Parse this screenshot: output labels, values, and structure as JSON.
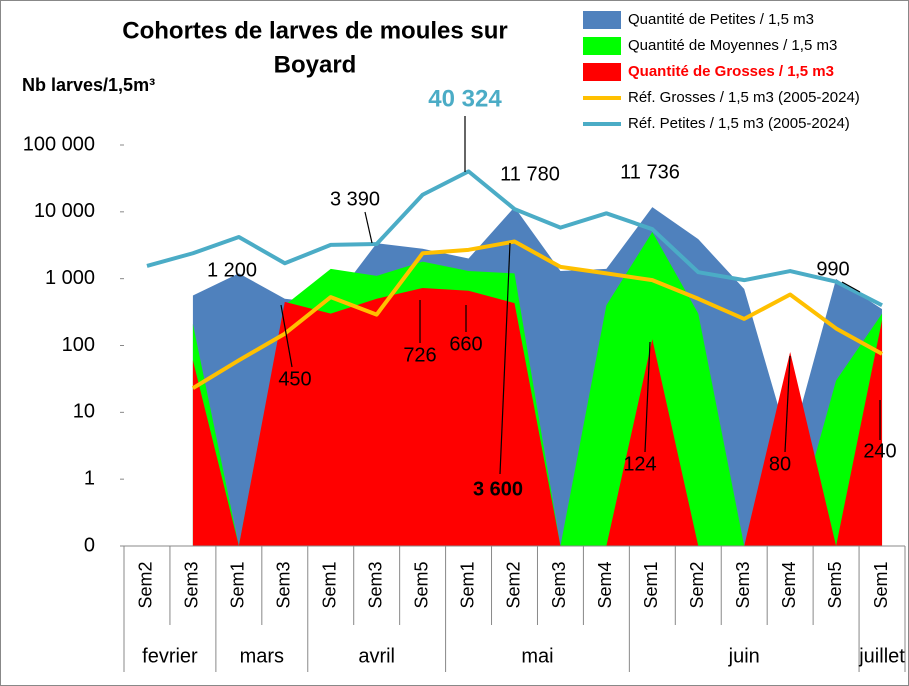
{
  "chart_data": {
    "type": "area",
    "title": [
      "Cohortes de larves de moules sur",
      "Boyard"
    ],
    "y_label": "Nb larves/1,5m³",
    "categories": [
      {
        "week": "Sem2",
        "month": "fevrier"
      },
      {
        "week": "Sem3",
        "month": "fevrier"
      },
      {
        "week": "Sem1",
        "month": "mars"
      },
      {
        "week": "Sem3",
        "month": "mars"
      },
      {
        "week": "Sem1",
        "month": "avril"
      },
      {
        "week": "Sem3",
        "month": "avril"
      },
      {
        "week": "Sem5",
        "month": "avril"
      },
      {
        "week": "Sem1",
        "month": "mai"
      },
      {
        "week": "Sem2",
        "month": "mai"
      },
      {
        "week": "Sem3",
        "month": "mai"
      },
      {
        "week": "Sem4",
        "month": "mai"
      },
      {
        "week": "Sem1",
        "month": "juin"
      },
      {
        "week": "Sem2",
        "month": "juin"
      },
      {
        "week": "Sem3",
        "month": "juin"
      },
      {
        "week": "Sem4",
        "month": "juin"
      },
      {
        "week": "Sem5",
        "month": "juin"
      },
      {
        "week": "Sem1",
        "month": "juillet"
      }
    ],
    "log_scale": true,
    "ylim": [
      0.1,
      100000
    ],
    "yticks": [
      {
        "value": 0.1,
        "label": "0"
      },
      1,
      10,
      100,
      {
        "value": 1000,
        "label": "1 000"
      },
      {
        "value": 10000,
        "label": "10 000"
      },
      {
        "value": 100000,
        "label": "100 000"
      }
    ],
    "grid": false,
    "legend": "top-right",
    "series": [
      {
        "name": "Quantité de Petites / 1,5 m3",
        "kind": "area",
        "color": "#4f81bd",
        "values": [
          null,
          560,
          1200,
          500,
          420,
          3390,
          2800,
          2000,
          11780,
          1300,
          1400,
          11736,
          3900,
          700,
          3,
          990,
          350
        ],
        "value_labels": [
          null,
          null,
          "1 200",
          null,
          null,
          "3 390",
          null,
          null,
          "11 780",
          null,
          null,
          "11 736",
          null,
          null,
          null,
          "990",
          null
        ]
      },
      {
        "name": "Quantité de Moyennes / 1,5 m3",
        "kind": "area",
        "color": "#00ff00",
        "values": [
          null,
          210,
          0,
          400,
          1400,
          1100,
          1800,
          1300,
          1200,
          0,
          400,
          5000,
          300,
          0,
          0,
          30,
          300
        ]
      },
      {
        "name": "Quantité de Grosses / 1,5 m3",
        "kind": "area",
        "color": "#ff0000",
        "values": [
          null,
          60,
          0,
          450,
          300,
          500,
          726,
          660,
          430,
          0,
          0,
          124,
          0,
          0,
          80,
          0,
          240
        ],
        "value_labels": [
          null,
          null,
          null,
          "450",
          null,
          null,
          "726",
          "660",
          null,
          null,
          null,
          "124",
          null,
          null,
          "80",
          null,
          "240"
        ]
      },
      {
        "name": "Réf. Grosses / 1,5 m3 (2005-2024)",
        "kind": "line",
        "color": "#ffc000",
        "values": [
          null,
          23,
          60,
          150,
          530,
          290,
          2400,
          2700,
          3600,
          1500,
          1200,
          950,
          500,
          250,
          580,
          180,
          75
        ],
        "value_labels": [
          null,
          null,
          null,
          null,
          null,
          null,
          null,
          null,
          "3 600",
          null,
          null,
          null,
          null,
          null,
          null,
          null,
          null
        ]
      },
      {
        "name": "Réf. Petites / 1,5 m3 (2005-2024)",
        "kind": "line",
        "color": "#4bacc6",
        "values": [
          1550,
          2400,
          4200,
          1700,
          3200,
          3300,
          18000,
          40324,
          11000,
          5800,
          9500,
          5500,
          1250,
          950,
          1300,
          900,
          400
        ],
        "value_labels": [
          null,
          null,
          null,
          null,
          null,
          null,
          null,
          "40 324",
          null,
          null,
          null,
          null,
          null,
          null,
          null,
          null,
          null
        ]
      }
    ]
  }
}
